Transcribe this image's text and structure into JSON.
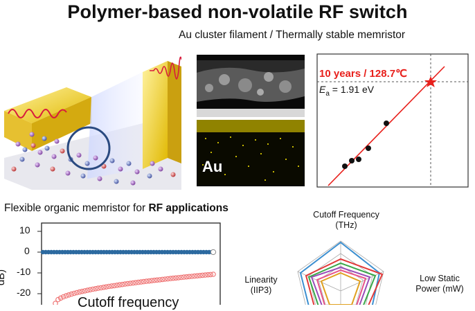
{
  "title": "Polymer-based non-volatile RF switch",
  "subtitle_top": "Au cluster filament / Thermally stable memristor",
  "subtitle_bottom": {
    "prefix": "Flexible organic memristor for ",
    "bold": "RF applications"
  },
  "tem_panel": {
    "element_label": "Au"
  },
  "arrhenius": {
    "annotation": "10 years / 128.7℃",
    "ea_symbol": "E",
    "ea_subscript": "a",
    "ea_value": " = 1.91 eV",
    "accent_color": "#e8201c"
  },
  "rf_plot": {
    "y_ticks": [
      "10",
      "0",
      "-10",
      "-20"
    ],
    "ylabel_partial": "dB)",
    "overlay_text": "Cutoff frequency",
    "series_colors": {
      "isolation": "#2c6aa0",
      "insertion": "#ef7777"
    }
  },
  "radar": {
    "axes": [
      {
        "line1": "Cutoff Frequency",
        "line2": "(THz)"
      },
      {
        "line1": "Linearity",
        "line2": "(IIP3)"
      },
      {
        "line1": "Low Static",
        "line2": "Power (mW)"
      }
    ],
    "series_colors": [
      "#3c8fd0",
      "#e23a3a",
      "#9a4db8",
      "#e0a020",
      "#3aa84a",
      "#e8558a"
    ]
  }
}
